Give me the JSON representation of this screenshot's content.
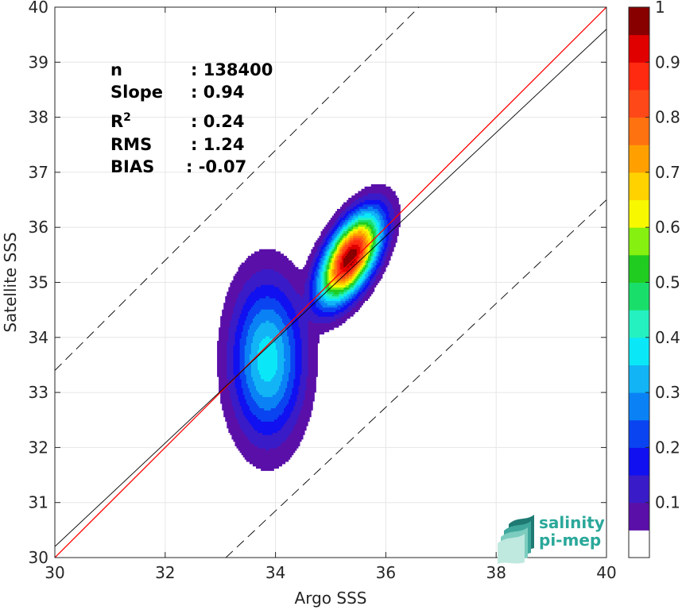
{
  "chart_data": {
    "type": "contour",
    "xlabel": "Argo SSS",
    "ylabel": "Satellite SSS",
    "xlim": [
      30,
      40
    ],
    "ylim": [
      30,
      40
    ],
    "xticks": [
      "30",
      "32",
      "34",
      "36",
      "38",
      "40"
    ],
    "yticks": [
      "30",
      "31",
      "32",
      "33",
      "34",
      "35",
      "36",
      "37",
      "38",
      "39",
      "40"
    ],
    "grid": true,
    "stats": [
      {
        "label": "n",
        "value": ": 138400"
      },
      {
        "label": "Slope",
        "value": ": 0.94"
      },
      {
        "label": "R",
        "sup": "2",
        "value": ": 0.24"
      },
      {
        "label": "RMS",
        "value": ": 1.24"
      },
      {
        "label": "BIAS",
        "value": ": -0.07"
      }
    ],
    "reference_lines": [
      {
        "kind": "identity",
        "color": "#ff0000",
        "points": [
          [
            30,
            30
          ],
          [
            40,
            40
          ]
        ]
      },
      {
        "kind": "fit",
        "color": "#000000",
        "points": [
          [
            30,
            30.2
          ],
          [
            40,
            39.6
          ]
        ]
      },
      {
        "kind": "upper_bound",
        "color": "#000000",
        "dashed": true,
        "points": [
          [
            30,
            33.4
          ],
          [
            37,
            40.4
          ]
        ]
      },
      {
        "kind": "lower_bound",
        "color": "#000000",
        "dashed": true,
        "points": [
          [
            33.1,
            30
          ],
          [
            40,
            36.5
          ]
        ]
      }
    ],
    "colorbar": {
      "ticks": [
        "0.1",
        "0.2",
        "0.3",
        "0.4",
        "0.5",
        "0.6",
        "0.7",
        "0.8",
        "0.9",
        "1"
      ],
      "levels": [
        {
          "min": 0.0,
          "color": "#ffffff"
        },
        {
          "min": 0.05,
          "color": "#5a0fa8"
        },
        {
          "min": 0.1,
          "color": "#3a1bc8"
        },
        {
          "min": 0.15,
          "color": "#1010f0"
        },
        {
          "min": 0.2,
          "color": "#0a44f0"
        },
        {
          "min": 0.25,
          "color": "#0a82f5"
        },
        {
          "min": 0.3,
          "color": "#12b4f5"
        },
        {
          "min": 0.35,
          "color": "#0ae8f8"
        },
        {
          "min": 0.4,
          "color": "#25f0c0"
        },
        {
          "min": 0.45,
          "color": "#19df6a"
        },
        {
          "min": 0.5,
          "color": "#20cc20"
        },
        {
          "min": 0.55,
          "color": "#86f010"
        },
        {
          "min": 0.6,
          "color": "#f8f800"
        },
        {
          "min": 0.65,
          "color": "#ffd200"
        },
        {
          "min": 0.7,
          "color": "#ffa000"
        },
        {
          "min": 0.75,
          "color": "#ff7210"
        },
        {
          "min": 0.8,
          "color": "#ff4818"
        },
        {
          "min": 0.85,
          "color": "#ff2a10"
        },
        {
          "min": 0.9,
          "color": "#e00000"
        },
        {
          "min": 0.95,
          "color": "#880000"
        }
      ]
    },
    "density_model": {
      "peak": [
        35.35,
        35.45
      ],
      "sigma_major": 1.2,
      "sigma_minor": 0.55,
      "axis_slope_deg": 62,
      "tail_center": [
        33.85,
        33.6
      ],
      "tail_weight": 0.38,
      "tail_sigma": [
        0.45,
        1.0
      ],
      "contour_levels": [
        0.05,
        0.1,
        0.15,
        0.2,
        0.25,
        0.3,
        0.35,
        0.4,
        0.45,
        0.5,
        0.55,
        0.6,
        0.65,
        0.7,
        0.75,
        0.8,
        0.85,
        0.9,
        0.95
      ]
    }
  },
  "logo": {
    "line1": "salinity",
    "line2": "pi-mep",
    "color": "#2aa89a"
  }
}
